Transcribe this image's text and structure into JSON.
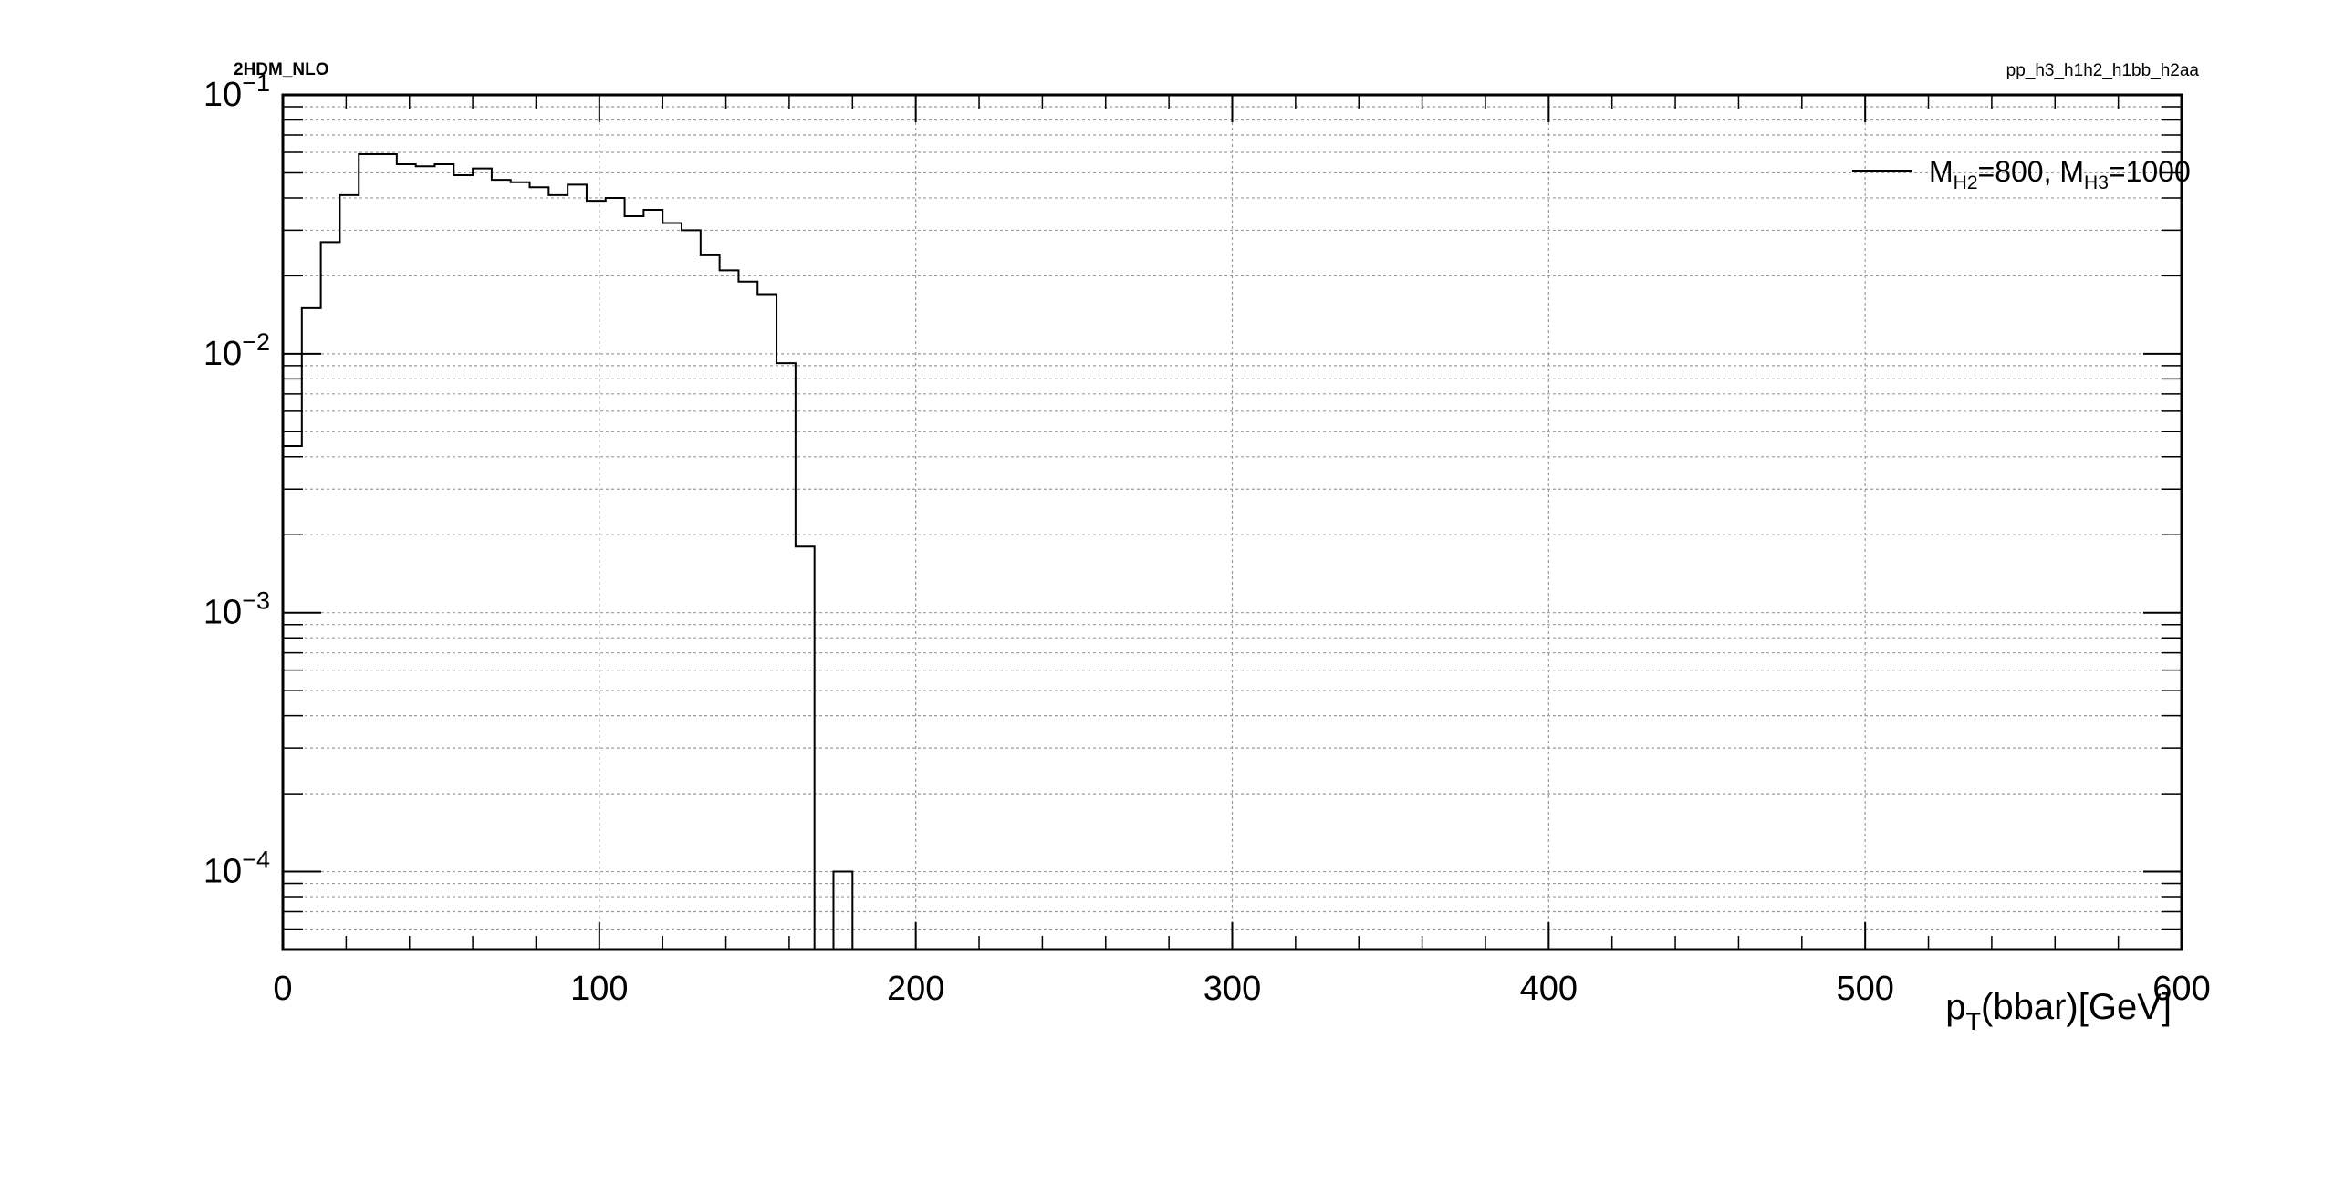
{
  "header": {
    "left_text": "2HDM_NLO",
    "right_text": "pp_h3_h1h2_h1bb_h2aa"
  },
  "legend": {
    "symbol": "M",
    "sub1": "H2",
    "mid": "=800, M",
    "sub2": "H3",
    "end": "=1000"
  },
  "x_title": {
    "base": "p",
    "sub": "T",
    "rest": "(bbar)[GeV]"
  },
  "chart_data": {
    "type": "histogram",
    "title": "",
    "x_label": "p_T(bbar)[GeV]",
    "y_label": "",
    "x_range": [
      0,
      600
    ],
    "y_range": [
      5e-05,
      0.1
    ],
    "y_scale": "log",
    "grid": true,
    "legend_position": "top-right",
    "x_ticks": [
      "0",
      "100",
      "200",
      "300",
      "400",
      "500",
      "600"
    ],
    "y_tick_exponents": [
      "-4",
      "-3",
      "-2",
      "-1"
    ],
    "line_color": "#000000",
    "series": [
      {
        "name": "M_H2=800, M_H3=1000",
        "bin_width": 6,
        "bin_edges_start": 0,
        "values": [
          0.0044,
          0.015,
          0.027,
          0.041,
          0.059,
          0.059,
          0.054,
          0.053,
          0.054,
          0.049,
          0.052,
          0.047,
          0.046,
          0.044,
          0.041,
          0.045,
          0.039,
          0.04,
          0.034,
          0.036,
          0.032,
          0.03,
          0.024,
          0.021,
          0.019,
          0.017,
          0.0092,
          0.0018,
          0,
          0.0001,
          0
        ]
      }
    ]
  }
}
